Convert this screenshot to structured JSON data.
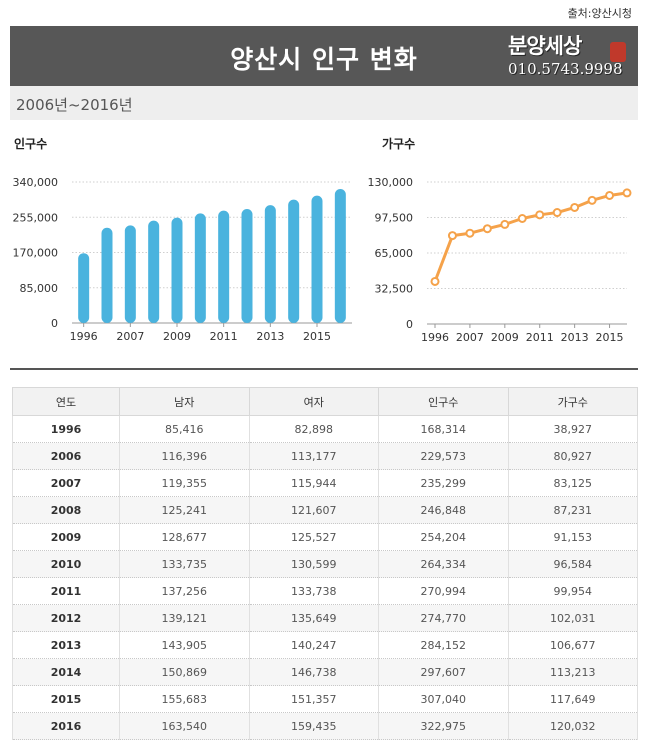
{
  "source_label": "출처:양산시청",
  "title": "양산시 인구 변화",
  "watermark": {
    "brand": "분양세상",
    "phone": "010.5743.9998"
  },
  "period": "2006년~2016년",
  "charts": {
    "population": {
      "title": "인구수",
      "color": "#4ab3de",
      "x_tick_labels": [
        "1996",
        "2007",
        "2009",
        "2011",
        "2013",
        "2015"
      ],
      "y_tick_labels": [
        "340,000",
        "255,000",
        "170,000",
        "85,000",
        "0"
      ]
    },
    "households": {
      "title": "가구수",
      "color": "#f5a24a",
      "x_tick_labels": [
        "1996",
        "2007",
        "2009",
        "2011",
        "2013",
        "2015"
      ],
      "y_tick_labels": [
        "130,000",
        "97,500",
        "65,000",
        "32,500",
        "0"
      ]
    }
  },
  "chart_data": [
    {
      "type": "bar",
      "title": "인구수",
      "categories": [
        "1996",
        "2006",
        "2007",
        "2008",
        "2009",
        "2010",
        "2011",
        "2012",
        "2013",
        "2014",
        "2015",
        "2016"
      ],
      "values": [
        168314,
        229573,
        235299,
        246848,
        254204,
        264334,
        270994,
        274770,
        284152,
        297607,
        307040,
        322975
      ],
      "ylim": [
        0,
        340000
      ],
      "grid": true
    },
    {
      "type": "line",
      "title": "가구수",
      "categories": [
        "1996",
        "2006",
        "2007",
        "2008",
        "2009",
        "2010",
        "2011",
        "2012",
        "2013",
        "2014",
        "2015",
        "2016"
      ],
      "values": [
        38927,
        80927,
        83125,
        87231,
        91153,
        96584,
        99954,
        102031,
        106677,
        113213,
        117649,
        120032
      ],
      "ylim": [
        0,
        130000
      ],
      "grid": true
    }
  ],
  "table": {
    "headers": [
      "연도",
      "남자",
      "여자",
      "인구수",
      "가구수"
    ],
    "rows": [
      [
        "1996",
        "85,416",
        "82,898",
        "168,314",
        "38,927"
      ],
      [
        "2006",
        "116,396",
        "113,177",
        "229,573",
        "80,927"
      ],
      [
        "2007",
        "119,355",
        "115,944",
        "235,299",
        "83,125"
      ],
      [
        "2008",
        "125,241",
        "121,607",
        "246,848",
        "87,231"
      ],
      [
        "2009",
        "128,677",
        "125,527",
        "254,204",
        "91,153"
      ],
      [
        "2010",
        "133,735",
        "130,599",
        "264,334",
        "96,584"
      ],
      [
        "2011",
        "137,256",
        "133,738",
        "270,994",
        "99,954"
      ],
      [
        "2012",
        "139,121",
        "135,649",
        "274,770",
        "102,031"
      ],
      [
        "2013",
        "143,905",
        "140,247",
        "284,152",
        "106,677"
      ],
      [
        "2014",
        "150,869",
        "146,738",
        "297,607",
        "113,213"
      ],
      [
        "2015",
        "155,683",
        "151,357",
        "307,040",
        "117,649"
      ],
      [
        "2016",
        "163,540",
        "159,435",
        "322,975",
        "120,032"
      ]
    ]
  }
}
